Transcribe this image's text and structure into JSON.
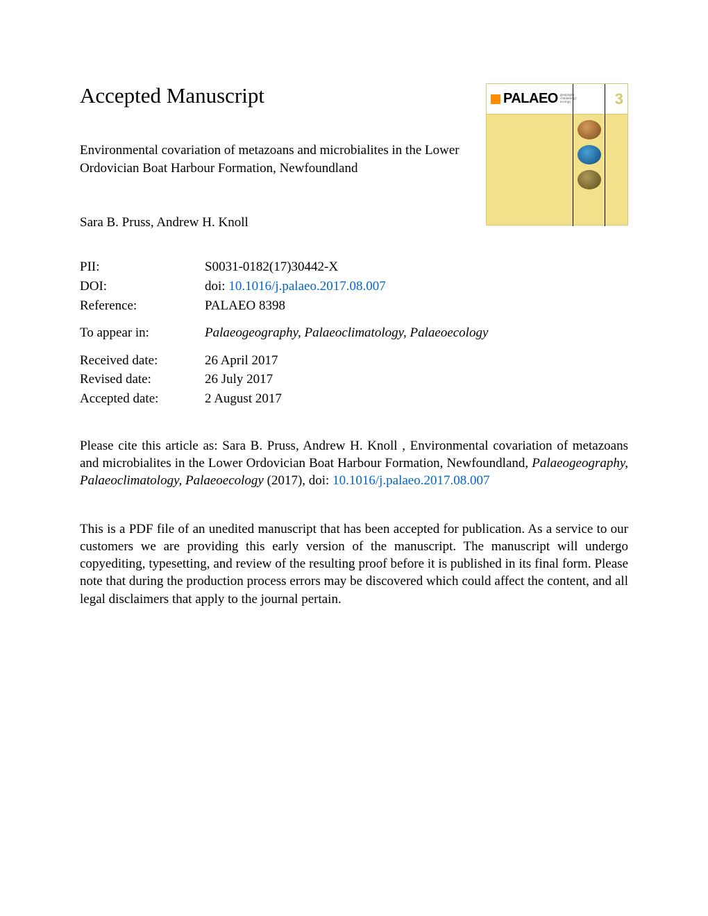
{
  "header": {
    "accepted": "Accepted Manuscript",
    "title": "Environmental covariation of metazoans and microbialites in the Lower Ordovician Boat Harbour Formation, Newfoundland",
    "authors": "Sara B. Pruss, Andrew H. Knoll"
  },
  "cover": {
    "brand": "PALAEO",
    "sub1": "geography",
    "sub2": "climatology",
    "sub3": "ecology",
    "three": "3"
  },
  "meta": {
    "pii_label": "PII:",
    "pii_value": "S0031-0182(17)30442-X",
    "doi_label": "DOI:",
    "doi_prefix": "doi: ",
    "doi_link": "10.1016/j.palaeo.2017.08.007",
    "ref_label": "Reference:",
    "ref_value": "PALAEO 8398",
    "appear_label": "To appear in:",
    "appear_value": "Palaeogeography, Palaeoclimatology, Palaeoecology",
    "received_label": "Received date:",
    "received_value": "26 April 2017",
    "revised_label": "Revised date:",
    "revised_value": "26 July 2017",
    "accepted_label": "Accepted date:",
    "accepted_value": "2 August 2017"
  },
  "citation": {
    "pre": "Please cite this article as: Sara B. Pruss, Andrew H. Knoll , Environmental covariation of metazoans and microbialites in the Lower Ordovician Boat Harbour Formation, Newfoundland, ",
    "journal": "Palaeogeography, Palaeoclimatology, Palaeoecology",
    "post": " (2017), doi: ",
    "link": "10.1016/j.palaeo.2017.08.007"
  },
  "disclaimer": "This is a PDF file of an unedited manuscript that has been accepted for publication. As a service to our customers we are providing this early version of the manuscript. The manuscript will undergo copyediting, typesetting, and review of the resulting proof before it is published in its final form. Please note that during the production process errors may be discovered which could affect the content, and all legal disclaimers that apply to the journal pertain."
}
